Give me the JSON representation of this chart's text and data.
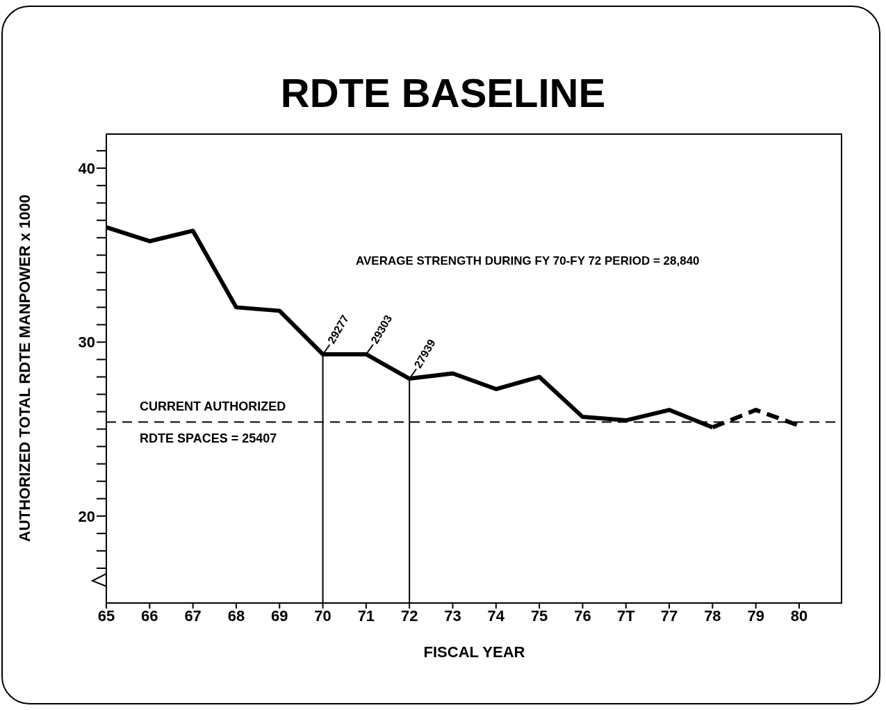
{
  "chart_data": {
    "type": "line",
    "title": "RDTE BASELINE",
    "xlabel": "FISCAL YEAR",
    "ylabel": "AUTHORIZED TOTAL RDTE MANPOWER x 1000",
    "categories": [
      "65",
      "66",
      "67",
      "68",
      "69",
      "70",
      "71",
      "72",
      "73",
      "74",
      "75",
      "76",
      "7T",
      "77",
      "78",
      "79",
      "80"
    ],
    "series": [
      {
        "color": "#000000",
        "line_style": "solid",
        "values": [
          36.6,
          35.8,
          36.4,
          32.0,
          31.8,
          29.3,
          29.3,
          27.9,
          28.2,
          27.3,
          28.0,
          25.7,
          25.5,
          26.1,
          25.1,
          null,
          null
        ]
      },
      {
        "color": "#000000",
        "line_style": "dashed",
        "values": [
          null,
          null,
          null,
          null,
          null,
          null,
          null,
          null,
          null,
          null,
          null,
          null,
          null,
          null,
          25.1,
          26.1,
          25.2
        ]
      }
    ],
    "ylim": [
      15,
      42
    ],
    "yticks": [
      {
        "value": 17,
        "label": null
      },
      {
        "value": 18,
        "label": null
      },
      {
        "value": 19,
        "label": null
      },
      20,
      {
        "value": 21,
        "label": null
      },
      {
        "value": 22,
        "label": null
      },
      {
        "value": 23,
        "label": null
      },
      {
        "value": 24,
        "label": null
      },
      {
        "value": 25,
        "label": null
      },
      {
        "value": 26,
        "label": null
      },
      {
        "value": 27,
        "label": null
      },
      {
        "value": 28,
        "label": null
      },
      {
        "value": 29,
        "label": null
      },
      30,
      {
        "value": 31,
        "label": null
      },
      {
        "value": 32,
        "label": null
      },
      {
        "value": 33,
        "label": null
      },
      {
        "value": 34,
        "label": null
      },
      {
        "value": 35,
        "label": null
      },
      {
        "value": 36,
        "label": null
      },
      {
        "value": 37,
        "label": null
      },
      {
        "value": 38,
        "label": null
      },
      {
        "value": 39,
        "label": null
      },
      40,
      {
        "value": 41,
        "label": null
      }
    ],
    "ref_lines": [
      {
        "axis": "y",
        "value": 25.407,
        "label": "CURRENT AUTHORIZED\nRDTE SPACES = 25407",
        "line_style": "dashed",
        "color": "#000000"
      },
      {
        "axis": "x",
        "value": "70",
        "color": "#000000",
        "line_style": "solid"
      },
      {
        "axis": "x",
        "value": "72",
        "color": "#000000",
        "line_style": "solid"
      }
    ],
    "annotations": [
      "AVERAGE STRENGTH DURING FY 70-FY 72 PERIOD = 28,840",
      {
        "text": "29277",
        "x": "70",
        "y": 29.3
      },
      {
        "text": "29303",
        "x": "71",
        "y": 29.3
      },
      {
        "text": "27939",
        "x": "72",
        "y": 27.9
      }
    ],
    "grid": false,
    "legend": false,
    "marker": "none"
  }
}
